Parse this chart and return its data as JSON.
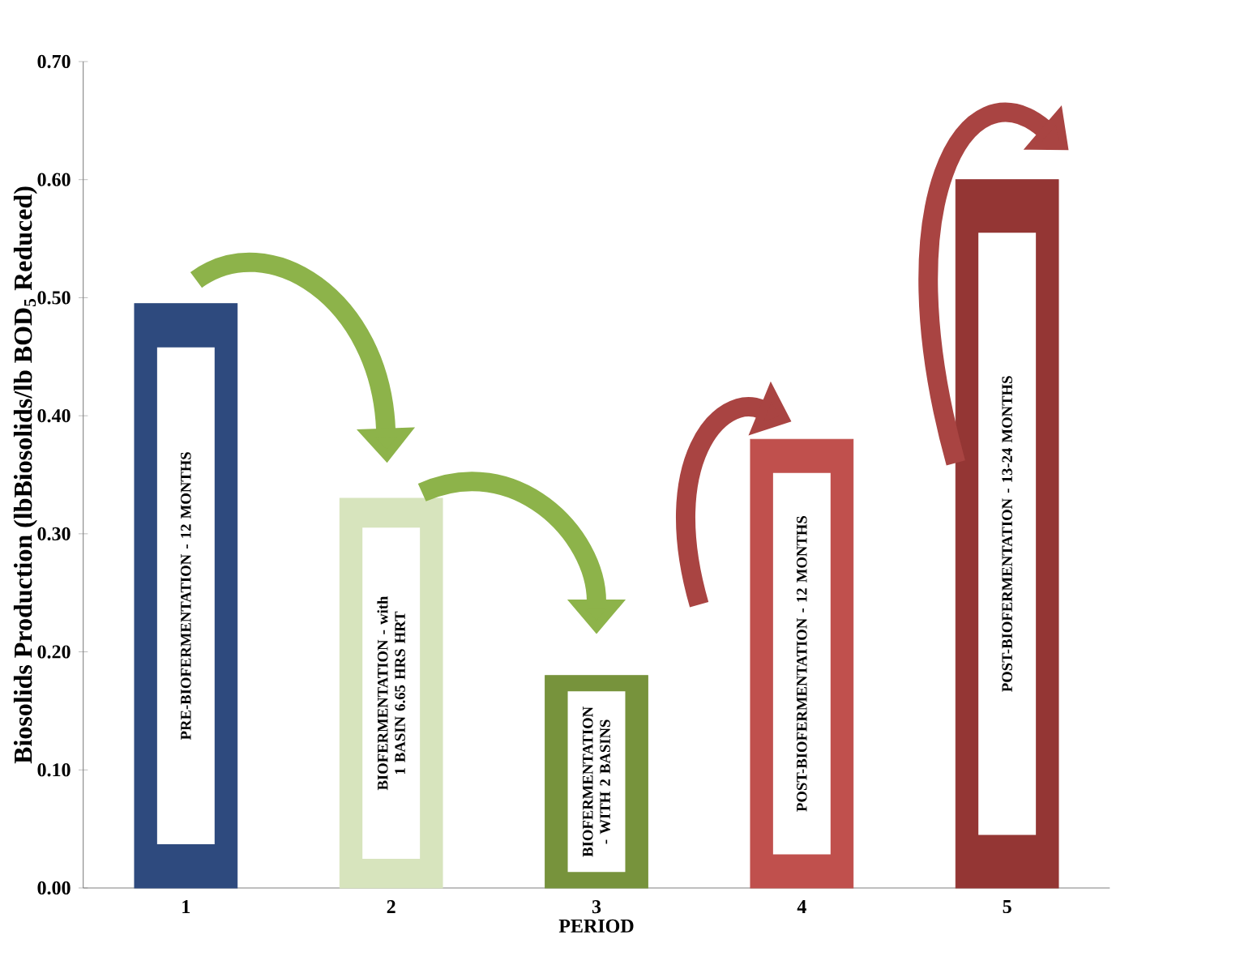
{
  "chart_data": {
    "type": "bar",
    "xlabel": "PERIOD",
    "ylabel": "Biosolids Production (lbBiosolids/lb BOD$_{5}$ Reduced)",
    "categories": [
      "1",
      "2",
      "3",
      "4",
      "5"
    ],
    "values": [
      0.495,
      0.33,
      0.18,
      0.38,
      0.6
    ],
    "colors": [
      "#2e4a7e",
      "#d7e4bd",
      "#77933c",
      "#c0504d",
      "#943634"
    ],
    "ylim": [
      0,
      0.7
    ],
    "yticks": [
      {
        "value": 0,
        "label": "0.00"
      },
      {
        "value": 0.1,
        "label": "0.10"
      },
      {
        "value": 0.2,
        "label": "0.20"
      },
      {
        "value": 0.3,
        "label": "0.30"
      },
      {
        "value": 0.4,
        "label": "0.40"
      },
      {
        "value": 0.5,
        "label": "0.50"
      },
      {
        "value": 0.6,
        "label": "0.60"
      },
      {
        "value": 0.7,
        "label": "0.70"
      }
    ],
    "annotations": [
      "PRE-BIOFERMENTATION - 12 MONTHS",
      "BIOFERMENTATION - with 1 BASIN 6.65 HRS HRT",
      "BIOFERMENTATION - WITH 2 BASINS",
      "POST-BIOFERMENTATION - 12 MONTHS",
      "POST-BIOFERMENTATION - 13-24 MONTHS"
    ]
  }
}
